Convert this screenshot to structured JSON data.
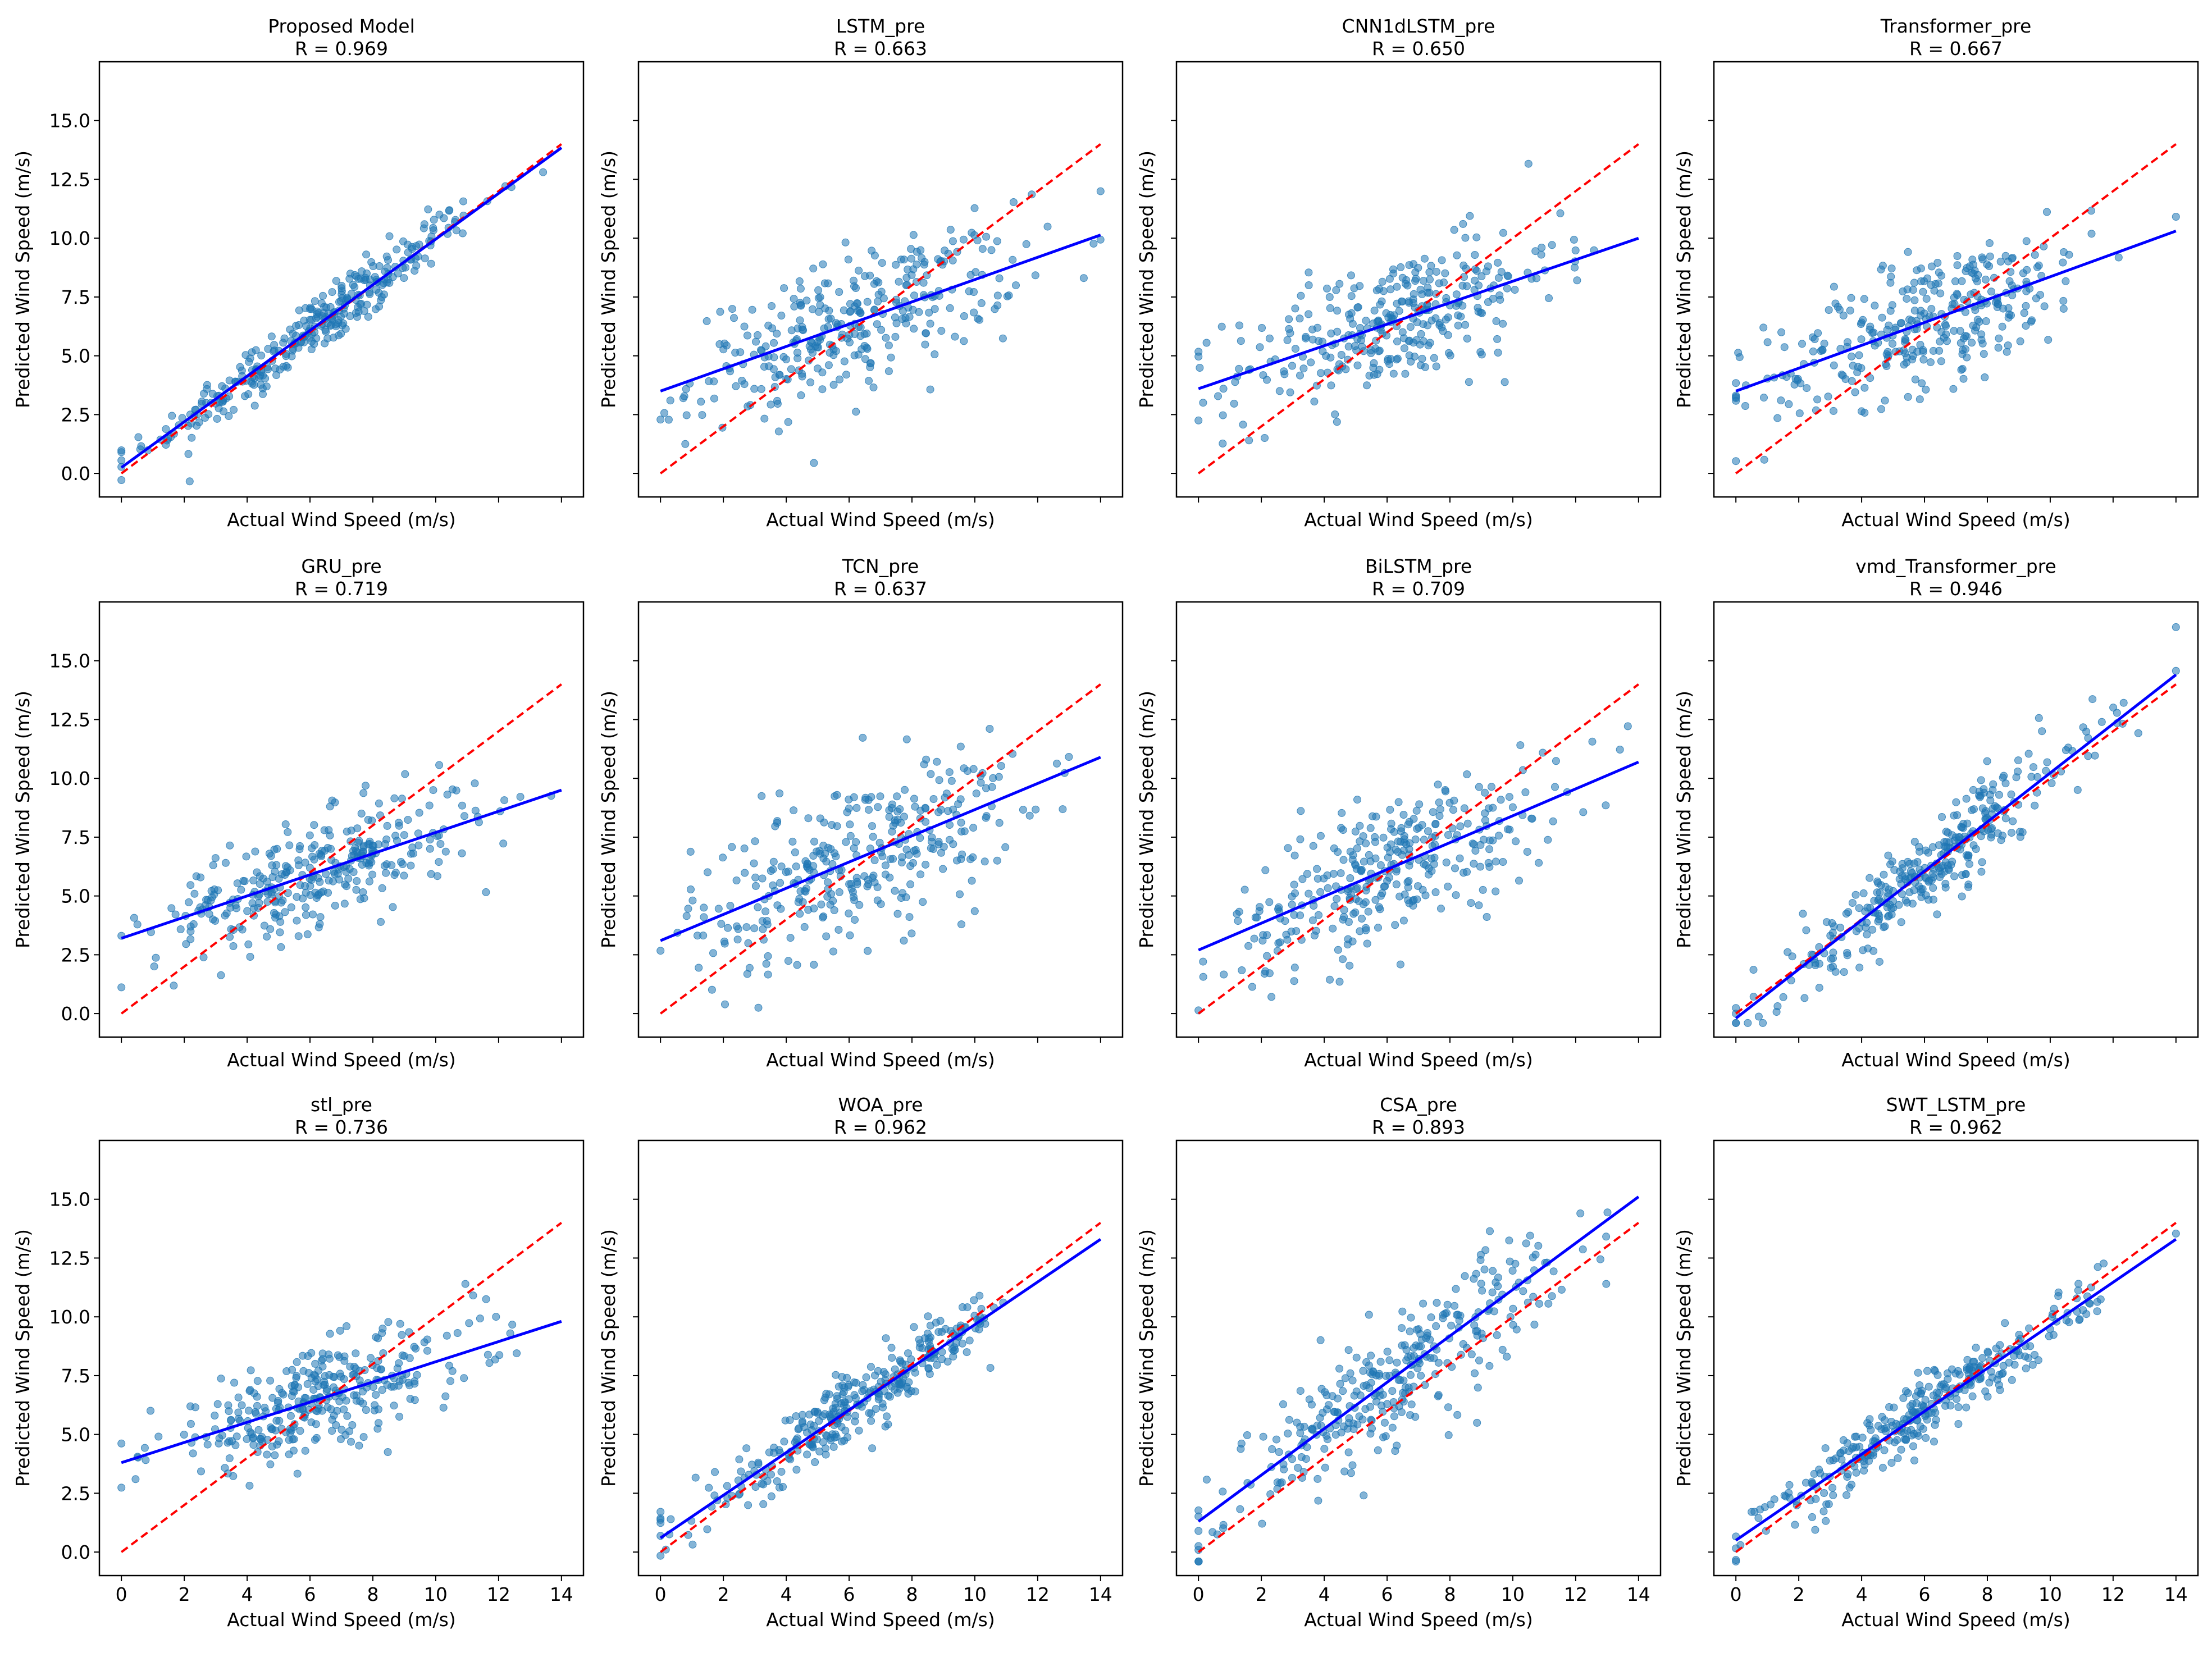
{
  "figure": {
    "xlabel": "Actual Wind Speed (m/s)",
    "ylabel": "Predicted Wind Speed (m/s)",
    "xticks": [
      "0",
      "2",
      "4",
      "6",
      "8",
      "10",
      "12",
      "14"
    ],
    "yticks": [
      "0.0",
      "2.5",
      "5.0",
      "7.5",
      "10.0",
      "12.5",
      "15.0"
    ],
    "colors": {
      "points": "#1f77b4",
      "identity_line": "#ff0000",
      "fit_line": "#0000ff"
    }
  },
  "chart_data": [
    {
      "type": "scatter",
      "title": "Proposed Model",
      "r_label": "R = 0.969",
      "r": 0.969,
      "fit": {
        "intercept": 0.25,
        "slope": 0.971
      },
      "xlim": [
        -0.7,
        14.7
      ],
      "ylim": [
        -1.0,
        17.5
      ]
    },
    {
      "type": "scatter",
      "title": "LSTM_pre",
      "r_label": "R = 0.663",
      "r": 0.663,
      "fit": {
        "intercept": 3.5,
        "slope": 0.474
      },
      "xlim": [
        -0.7,
        14.7
      ],
      "ylim": [
        -1.0,
        17.5
      ]
    },
    {
      "type": "scatter",
      "title": "CNN1dLSTM_pre",
      "r_label": "R = 0.650",
      "r": 0.65,
      "fit": {
        "intercept": 3.6,
        "slope": 0.457
      },
      "xlim": [
        -0.7,
        14.7
      ],
      "ylim": [
        -1.0,
        17.5
      ]
    },
    {
      "type": "scatter",
      "title": "Transformer_pre",
      "r_label": "R = 0.667",
      "r": 0.667,
      "fit": {
        "intercept": 3.5,
        "slope": 0.486
      },
      "xlim": [
        -0.7,
        14.7
      ],
      "ylim": [
        -1.0,
        17.5
      ]
    },
    {
      "type": "scatter",
      "title": "GRU_pre",
      "r_label": "R = 0.719",
      "r": 0.719,
      "fit": {
        "intercept": 3.2,
        "slope": 0.45
      },
      "xlim": [
        -0.7,
        14.7
      ],
      "ylim": [
        -1.0,
        17.5
      ]
    },
    {
      "type": "scatter",
      "title": "TCN_pre",
      "r_label": "R = 0.637",
      "r": 0.637,
      "fit": {
        "intercept": 3.1,
        "slope": 0.557
      },
      "xlim": [
        -0.7,
        14.7
      ],
      "ylim": [
        -1.0,
        17.5
      ]
    },
    {
      "type": "scatter",
      "title": "BiLSTM_pre",
      "r_label": "R = 0.709",
      "r": 0.709,
      "fit": {
        "intercept": 2.7,
        "slope": 0.571
      },
      "xlim": [
        -0.7,
        14.7
      ],
      "ylim": [
        -1.0,
        17.5
      ]
    },
    {
      "type": "scatter",
      "title": "vmd_Transformer_pre",
      "r_label": "R = 0.946",
      "r": 0.946,
      "fit": {
        "intercept": -0.2,
        "slope": 1.043
      },
      "xlim": [
        -0.7,
        14.7
      ],
      "ylim": [
        -1.0,
        17.5
      ]
    },
    {
      "type": "scatter",
      "title": "stl_pre",
      "r_label": "R = 0.736",
      "r": 0.736,
      "fit": {
        "intercept": 3.8,
        "slope": 0.429
      },
      "xlim": [
        -0.7,
        14.7
      ],
      "ylim": [
        -1.0,
        17.5
      ]
    },
    {
      "type": "scatter",
      "title": "WOA_pre",
      "r_label": "R = 0.962",
      "r": 0.962,
      "fit": {
        "intercept": 0.6,
        "slope": 0.907
      },
      "xlim": [
        -0.7,
        14.7
      ],
      "ylim": [
        -1.0,
        17.5
      ]
    },
    {
      "type": "scatter",
      "title": "CSA_pre",
      "r_label": "R = 0.893",
      "r": 0.893,
      "fit": {
        "intercept": 1.3,
        "slope": 0.986
      },
      "xlim": [
        -0.7,
        14.7
      ],
      "ylim": [
        -1.0,
        17.5
      ]
    },
    {
      "type": "scatter",
      "title": "SWT_LSTM_pre",
      "r_label": "R = 0.962",
      "r": 0.962,
      "fit": {
        "intercept": 0.5,
        "slope": 0.914
      },
      "xlim": [
        -0.7,
        14.7
      ],
      "ylim": [
        -1.0,
        17.5
      ]
    }
  ]
}
